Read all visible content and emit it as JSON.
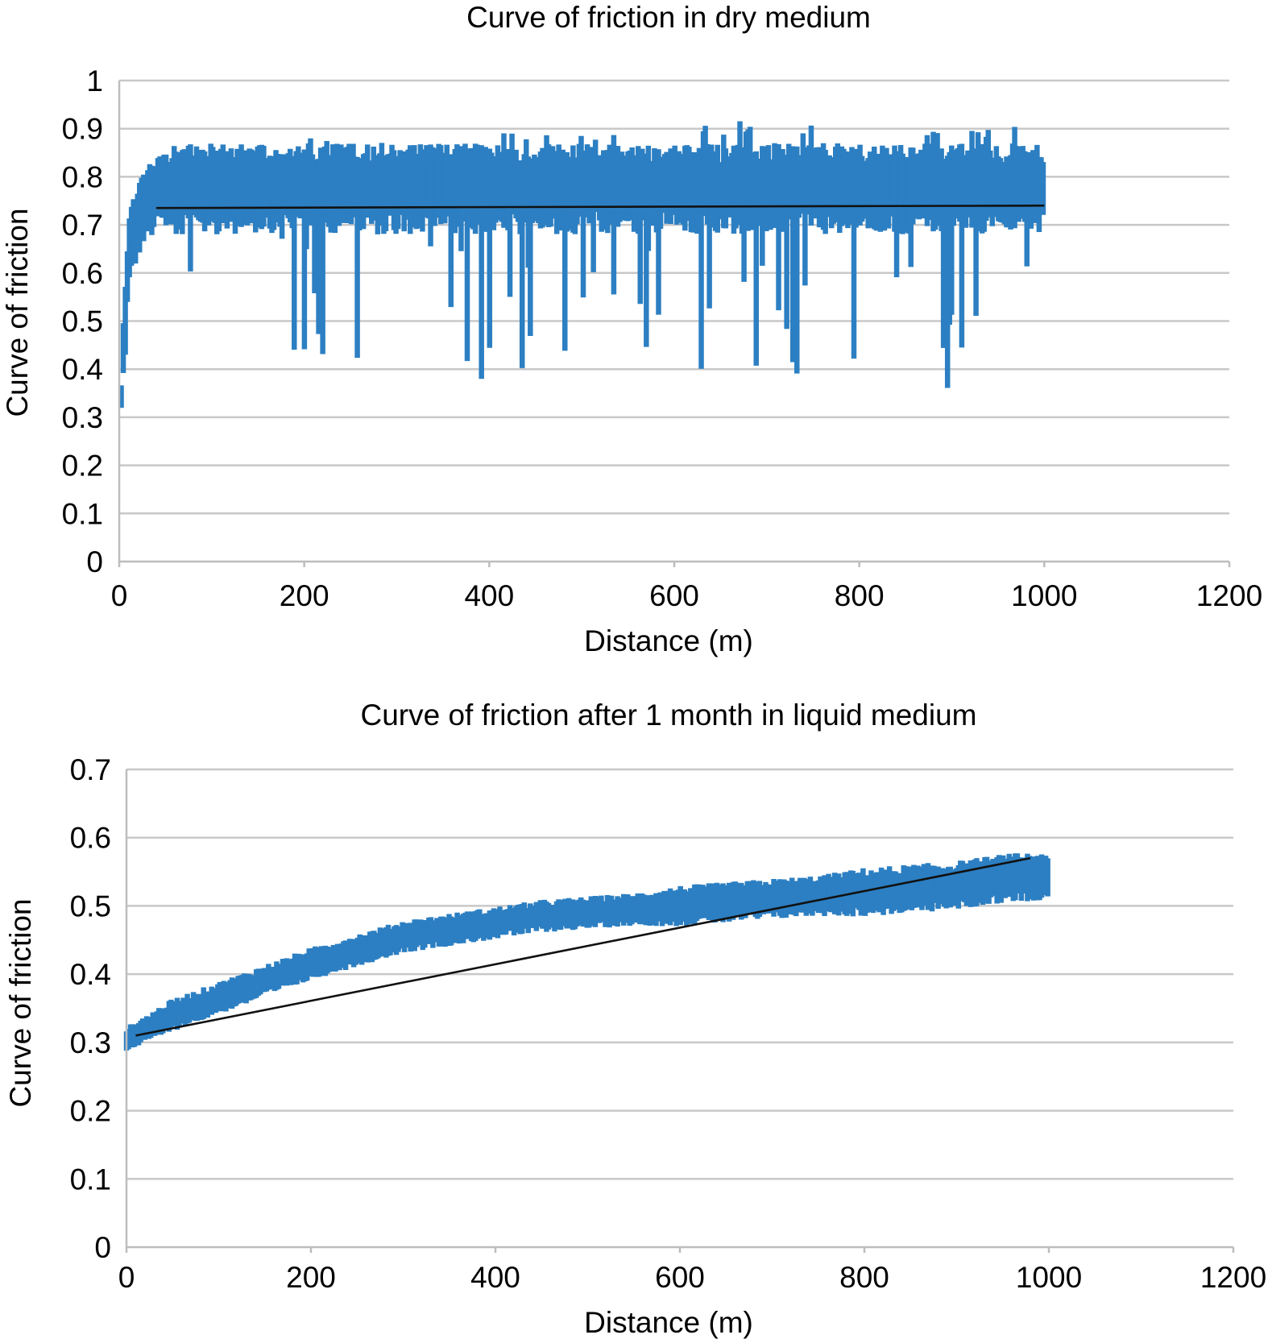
{
  "chart_data": [
    {
      "type": "line",
      "title": "Curve of friction in dry medium",
      "xlabel": "Distance (m)",
      "ylabel": "Curve of friction",
      "xlim": [
        0,
        1200
      ],
      "ylim": [
        0,
        1
      ],
      "x_ticks": [
        "0",
        "200",
        "400",
        "600",
        "800",
        "1000",
        "1200"
      ],
      "y_ticks": [
        "0",
        "0.1",
        "0.2",
        "0.3",
        "0.4",
        "0.5",
        "0.6",
        "0.7",
        "0.8",
        "0.9",
        "1"
      ],
      "grid": true,
      "legend": "none",
      "colors": {
        "series": "#2c7fc2",
        "trendline": "#111111"
      },
      "series": [
        {
          "style": "band",
          "x": [
            0,
            5,
            10,
            20,
            30,
            40,
            100,
            200,
            300,
            400,
            500,
            600,
            700,
            800,
            900,
            1000
          ],
          "y_min": [
            0.25,
            0.33,
            0.5,
            0.6,
            0.63,
            0.65,
            0.53,
            0.4,
            0.37,
            0.38,
            0.39,
            0.37,
            0.35,
            0.37,
            0.36,
            0.45
          ],
          "y_max": [
            0.25,
            0.56,
            0.72,
            0.8,
            0.83,
            0.84,
            0.86,
            0.88,
            0.89,
            0.9,
            0.9,
            0.91,
            0.92,
            0.9,
            0.92,
            0.9
          ],
          "y_typical_low": 0.7,
          "y_typical_high": 0.85
        },
        {
          "style": "trendline",
          "x": [
            40,
            1000
          ],
          "y": [
            0.735,
            0.74
          ]
        }
      ]
    },
    {
      "type": "line",
      "title": "Curve of friction after 1 month in liquid medium",
      "xlabel": "Distance (m)",
      "ylabel": "Curve of friction",
      "xlim": [
        0,
        1200
      ],
      "ylim": [
        0,
        0.7
      ],
      "x_ticks": [
        "0",
        "200",
        "400",
        "600",
        "800",
        "1000",
        "1200"
      ],
      "y_ticks": [
        "0",
        "0.1",
        "0.2",
        "0.3",
        "0.4",
        "0.5",
        "0.6",
        "0.7"
      ],
      "grid": true,
      "legend": "none",
      "colors": {
        "series": "#2c7fc2",
        "trendline": "#111111"
      },
      "series": [
        {
          "style": "band",
          "x": [
            0,
            50,
            100,
            150,
            200,
            250,
            300,
            350,
            400,
            450,
            500,
            550,
            600,
            650,
            700,
            750,
            800,
            850,
            900,
            950,
            1000
          ],
          "y_center": [
            0.305,
            0.34,
            0.365,
            0.39,
            0.415,
            0.435,
            0.455,
            0.465,
            0.475,
            0.485,
            0.49,
            0.495,
            0.5,
            0.505,
            0.51,
            0.515,
            0.52,
            0.525,
            0.53,
            0.54,
            0.545
          ],
          "y_spread": [
            0.015,
            0.02,
            0.02,
            0.02,
            0.02,
            0.02,
            0.02,
            0.02,
            0.02,
            0.02,
            0.02,
            0.02,
            0.025,
            0.025,
            0.025,
            0.025,
            0.03,
            0.03,
            0.03,
            0.03,
            0.03
          ]
        },
        {
          "style": "trendline",
          "x": [
            10,
            980
          ],
          "y": [
            0.31,
            0.57
          ]
        }
      ]
    }
  ]
}
